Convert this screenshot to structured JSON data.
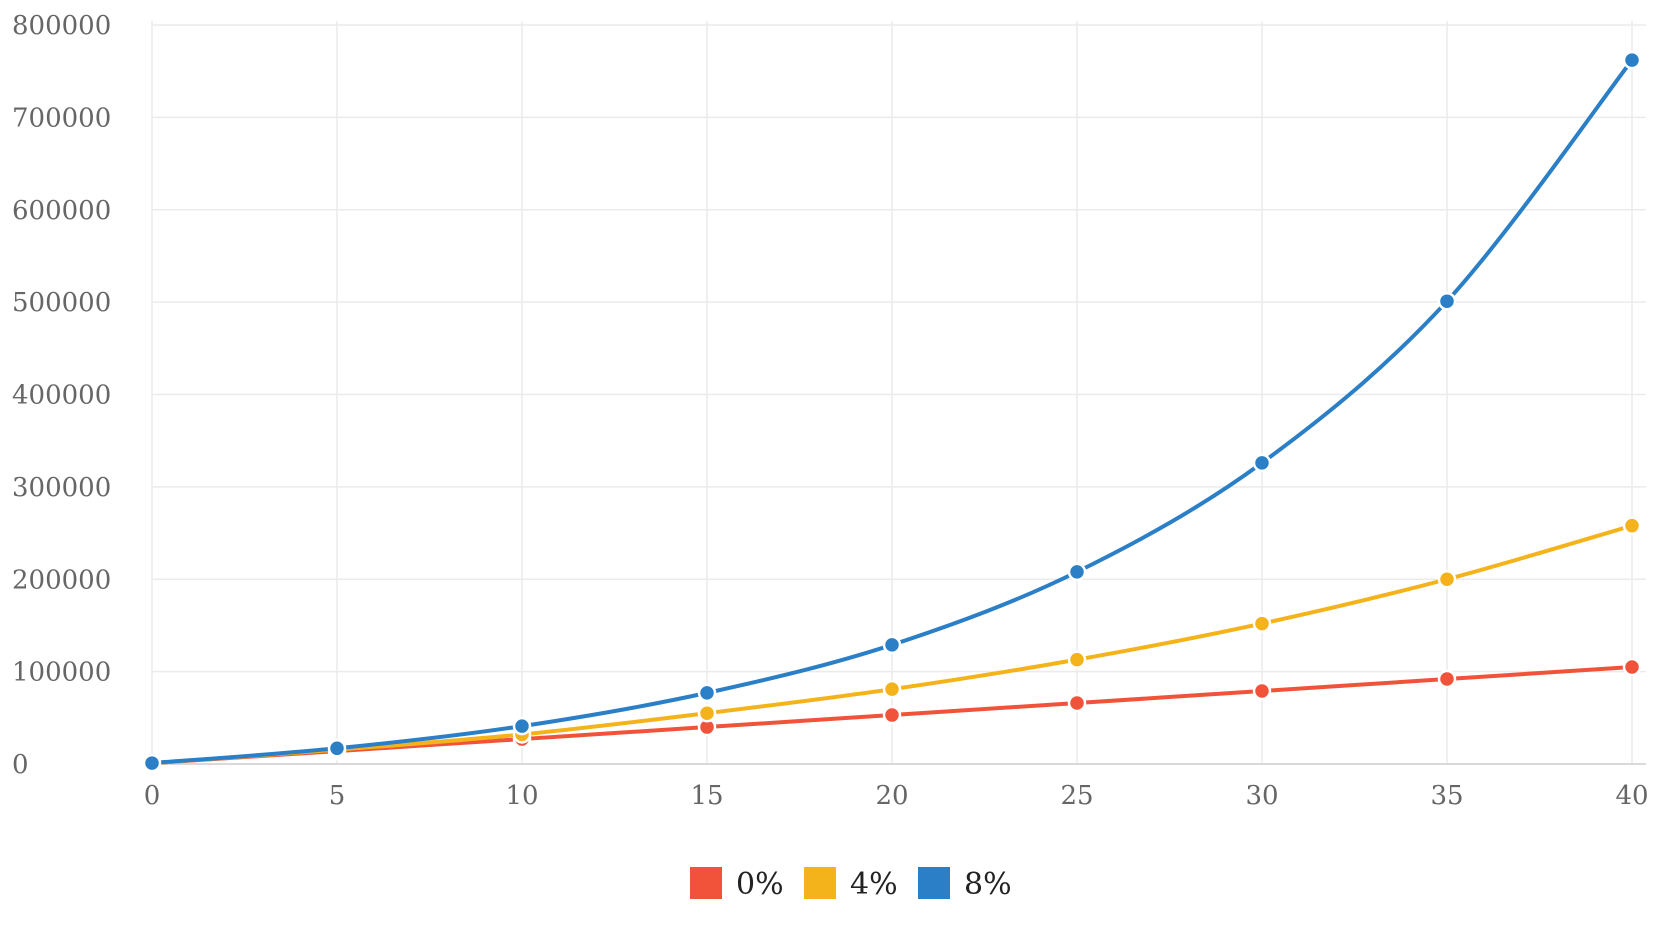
{
  "chart_data": {
    "type": "line",
    "title": "",
    "xlabel": "",
    "ylabel": "",
    "x": [
      0,
      5,
      10,
      15,
      20,
      25,
      30,
      35,
      40
    ],
    "xlim": [
      0,
      40
    ],
    "ylim": [
      0,
      800000
    ],
    "x_ticks": [
      0,
      5,
      10,
      15,
      20,
      25,
      30,
      35,
      40
    ],
    "y_ticks": [
      0,
      100000,
      200000,
      300000,
      400000,
      500000,
      600000,
      700000,
      800000
    ],
    "grid": true,
    "legend_position": "bottom-center",
    "series": [
      {
        "name": "0%",
        "color": "#f0533a",
        "values": [
          1000,
          14000,
          27000,
          40000,
          53000,
          66000,
          79000,
          92000,
          105000
        ]
      },
      {
        "name": "4%",
        "color": "#f5b31b",
        "values": [
          1000,
          15500,
          32000,
          55000,
          81000,
          113000,
          152000,
          200000,
          258000
        ]
      },
      {
        "name": "8%",
        "color": "#2a7fc7",
        "values": [
          1000,
          17000,
          41000,
          77000,
          129000,
          208000,
          326000,
          501000,
          762000
        ]
      }
    ]
  }
}
